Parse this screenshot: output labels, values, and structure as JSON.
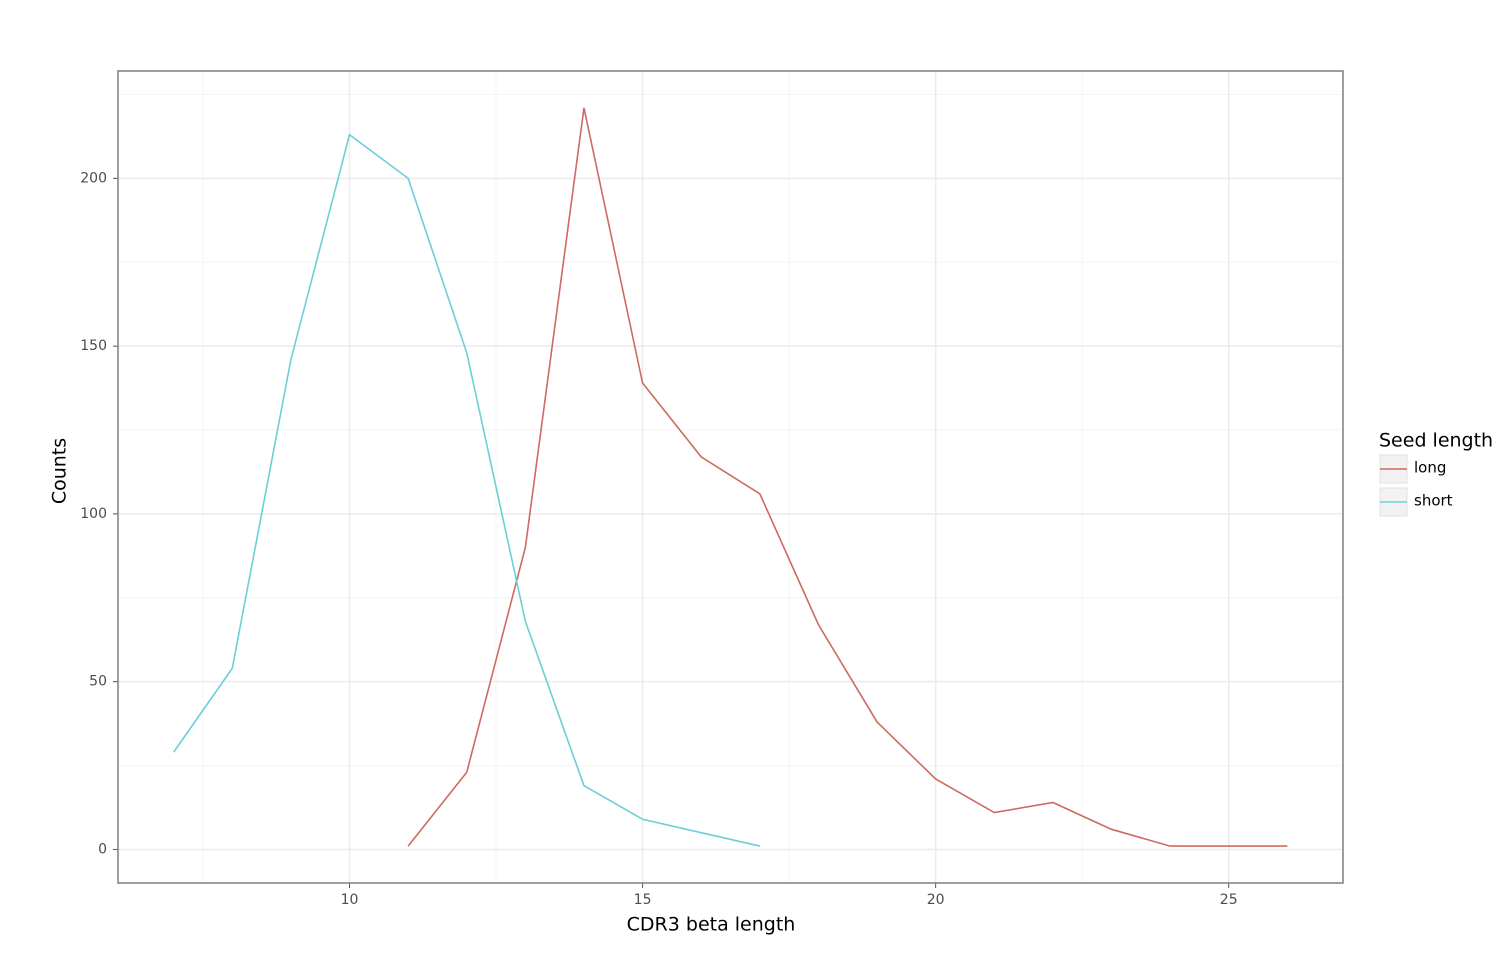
{
  "chart_data": {
    "type": "line",
    "x_label": "CDR3 beta length",
    "y_label": "Counts",
    "legend_title": "Seed length",
    "legend_position": "right",
    "xlim": [
      6.05,
      26.95
    ],
    "xticks": [
      10,
      15,
      20,
      25
    ],
    "ylim": [
      -10,
      232
    ],
    "yticks": [
      0,
      50,
      100,
      150,
      200
    ],
    "grid": true,
    "minor_grid": true,
    "series": [
      {
        "name": "long",
        "color": "#cd6b60",
        "x": [
          11,
          12,
          13,
          14,
          15,
          16,
          17,
          18,
          19,
          20,
          21,
          22,
          23,
          24,
          25,
          26
        ],
        "values": [
          1,
          23,
          90,
          221,
          139,
          117,
          106,
          67,
          38,
          21,
          11,
          14,
          6,
          1,
          1,
          1
        ]
      },
      {
        "name": "short",
        "color": "#6ccfd8",
        "x": [
          7,
          8,
          9,
          10,
          11,
          12,
          13,
          14,
          15,
          16,
          17
        ],
        "values": [
          29,
          54,
          146,
          213,
          200,
          148,
          68,
          19,
          9,
          5,
          1
        ]
      }
    ]
  }
}
